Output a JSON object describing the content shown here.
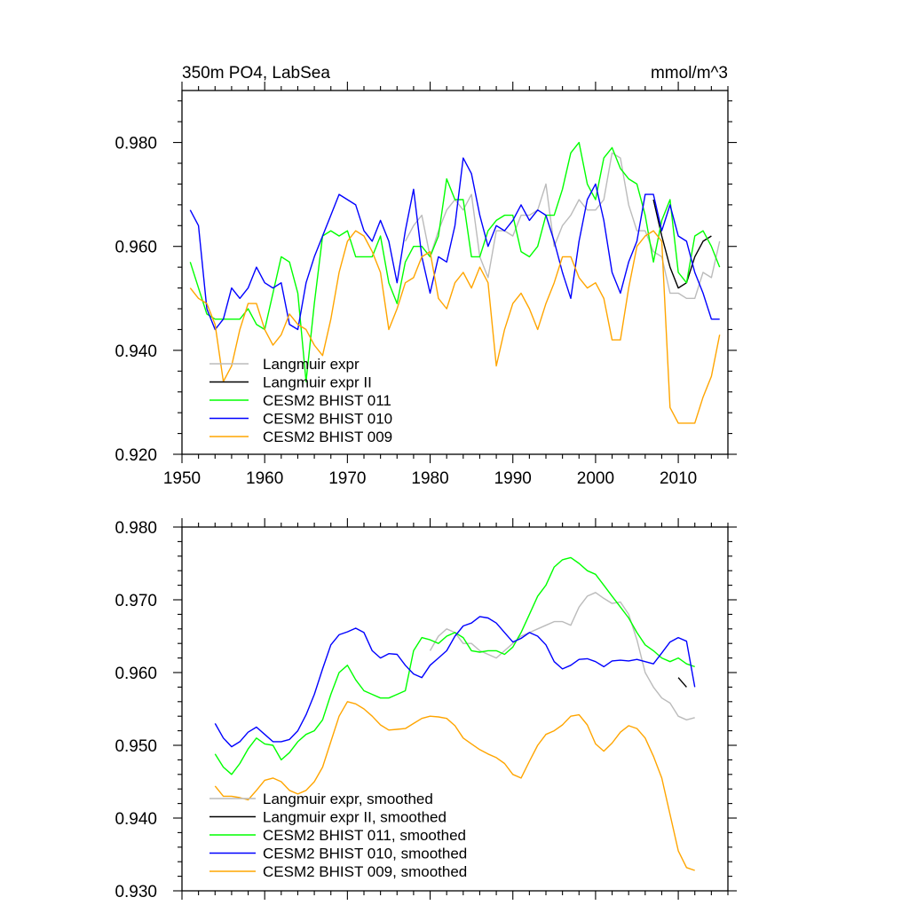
{
  "chart_data": [
    {
      "type": "line",
      "title": "350m PO4, LabSea",
      "units": "mmol/m^3",
      "ylim": [
        0.92,
        0.99
      ],
      "xlim": [
        1950,
        2016
      ],
      "yticks": [
        "0.920",
        "0.940",
        "0.960",
        "0.980"
      ],
      "xticks": [
        "1950",
        "1960",
        "1970",
        "1980",
        "1990",
        "2000",
        "2010"
      ],
      "legend_position": "bottom-left",
      "series": [
        {
          "name": "Langmuir expr",
          "color": "#bbbbbb",
          "x": [
            1977,
            1978,
            1979,
            1980,
            1981,
            1982,
            1983,
            1984,
            1985,
            1986,
            1987,
            1988,
            1989,
            1990,
            1991,
            1992,
            1993,
            1994,
            1995,
            1996,
            1997,
            1998,
            1999,
            2000,
            2001,
            2002,
            2003,
            2004,
            2005,
            2006,
            2007,
            2008,
            2009,
            2010,
            2011,
            2012,
            2013,
            2014,
            2015
          ],
          "y": [
            0.961,
            0.964,
            0.966,
            0.958,
            0.963,
            0.967,
            0.969,
            0.967,
            0.97,
            0.958,
            0.954,
            0.963,
            0.963,
            0.962,
            0.966,
            0.966,
            0.967,
            0.972,
            0.96,
            0.964,
            0.966,
            0.969,
            0.967,
            0.967,
            0.969,
            0.978,
            0.977,
            0.968,
            0.963,
            0.963,
            0.959,
            0.958,
            0.951,
            0.951,
            0.95,
            0.95,
            0.955,
            0.954,
            0.961
          ]
        },
        {
          "name": "Langmuir expr II",
          "color": "#000000",
          "x": [
            2007,
            2008,
            2009,
            2010,
            2011,
            2012,
            2013,
            2014
          ],
          "y": [
            0.969,
            0.962,
            0.956,
            0.952,
            0.953,
            0.958,
            0.961,
            0.962
          ]
        },
        {
          "name": "CESM2 BHIST 011",
          "color": "#00ff00",
          "x": [
            1951,
            1952,
            1953,
            1954,
            1955,
            1956,
            1957,
            1958,
            1959,
            1960,
            1961,
            1962,
            1963,
            1964,
            1965,
            1966,
            1967,
            1968,
            1969,
            1970,
            1971,
            1972,
            1973,
            1974,
            1975,
            1976,
            1977,
            1978,
            1979,
            1980,
            1981,
            1982,
            1983,
            1984,
            1985,
            1986,
            1987,
            1988,
            1989,
            1990,
            1991,
            1992,
            1993,
            1994,
            1995,
            1996,
            1997,
            1998,
            1999,
            2000,
            2001,
            2002,
            2003,
            2004,
            2005,
            2006,
            2007,
            2008,
            2009,
            2010,
            2011,
            2012,
            2013,
            2014,
            2015
          ],
          "y": [
            0.957,
            0.952,
            0.947,
            0.946,
            0.946,
            0.946,
            0.946,
            0.948,
            0.945,
            0.944,
            0.951,
            0.958,
            0.957,
            0.951,
            0.934,
            0.949,
            0.962,
            0.963,
            0.962,
            0.963,
            0.958,
            0.958,
            0.958,
            0.962,
            0.953,
            0.949,
            0.957,
            0.96,
            0.96,
            0.958,
            0.962,
            0.973,
            0.969,
            0.969,
            0.958,
            0.958,
            0.963,
            0.965,
            0.966,
            0.966,
            0.959,
            0.958,
            0.96,
            0.966,
            0.966,
            0.971,
            0.978,
            0.98,
            0.972,
            0.969,
            0.977,
            0.979,
            0.975,
            0.973,
            0.972,
            0.966,
            0.957,
            0.965,
            0.969,
            0.955,
            0.953,
            0.962,
            0.963,
            0.96,
            0.956
          ]
        },
        {
          "name": "CESM2 BHIST 010",
          "color": "#0000ff",
          "x": [
            1951,
            1952,
            1953,
            1954,
            1955,
            1956,
            1957,
            1958,
            1959,
            1960,
            1961,
            1962,
            1963,
            1964,
            1965,
            1966,
            1967,
            1968,
            1969,
            1970,
            1971,
            1972,
            1973,
            1974,
            1975,
            1976,
            1977,
            1978,
            1979,
            1980,
            1981,
            1982,
            1983,
            1984,
            1985,
            1986,
            1987,
            1988,
            1989,
            1990,
            1991,
            1992,
            1993,
            1994,
            1995,
            1996,
            1997,
            1998,
            1999,
            2000,
            2001,
            2002,
            2003,
            2004,
            2005,
            2006,
            2007,
            2008,
            2009,
            2010,
            2011,
            2012,
            2013,
            2014,
            2015
          ],
          "y": [
            0.967,
            0.964,
            0.948,
            0.944,
            0.946,
            0.952,
            0.95,
            0.952,
            0.956,
            0.953,
            0.952,
            0.953,
            0.945,
            0.944,
            0.953,
            0.958,
            0.962,
            0.966,
            0.97,
            0.969,
            0.968,
            0.963,
            0.961,
            0.965,
            0.961,
            0.953,
            0.963,
            0.971,
            0.958,
            0.951,
            0.958,
            0.957,
            0.964,
            0.977,
            0.974,
            0.966,
            0.96,
            0.964,
            0.963,
            0.965,
            0.968,
            0.965,
            0.967,
            0.966,
            0.961,
            0.955,
            0.95,
            0.961,
            0.969,
            0.972,
            0.965,
            0.955,
            0.951,
            0.957,
            0.961,
            0.97,
            0.97,
            0.963,
            0.968,
            0.962,
            0.961,
            0.955,
            0.951,
            0.946,
            0.946
          ]
        },
        {
          "name": "CESM2 BHIST 009",
          "color": "#ffa500",
          "x": [
            1951,
            1952,
            1953,
            1954,
            1955,
            1956,
            1957,
            1958,
            1959,
            1960,
            1961,
            1962,
            1963,
            1964,
            1965,
            1966,
            1967,
            1968,
            1969,
            1970,
            1971,
            1972,
            1973,
            1974,
            1975,
            1976,
            1977,
            1978,
            1979,
            1980,
            1981,
            1982,
            1983,
            1984,
            1985,
            1986,
            1987,
            1988,
            1989,
            1990,
            1991,
            1992,
            1993,
            1994,
            1995,
            1996,
            1997,
            1998,
            1999,
            2000,
            2001,
            2002,
            2003,
            2004,
            2005,
            2006,
            2007,
            2008,
            2009,
            2010,
            2011,
            2012,
            2013,
            2014,
            2015
          ],
          "y": [
            0.952,
            0.95,
            0.949,
            0.945,
            0.934,
            0.937,
            0.944,
            0.949,
            0.949,
            0.944,
            0.941,
            0.943,
            0.947,
            0.945,
            0.944,
            0.941,
            0.939,
            0.946,
            0.955,
            0.961,
            0.963,
            0.962,
            0.959,
            0.955,
            0.944,
            0.948,
            0.953,
            0.954,
            0.958,
            0.959,
            0.95,
            0.948,
            0.953,
            0.955,
            0.952,
            0.956,
            0.953,
            0.937,
            0.944,
            0.949,
            0.951,
            0.948,
            0.944,
            0.949,
            0.953,
            0.958,
            0.958,
            0.954,
            0.952,
            0.953,
            0.95,
            0.942,
            0.942,
            0.952,
            0.96,
            0.962,
            0.963,
            0.961,
            0.929,
            0.926,
            0.926,
            0.926,
            0.931,
            0.935,
            0.943
          ]
        }
      ]
    },
    {
      "type": "line",
      "title": "",
      "ylim": [
        0.93,
        0.98
      ],
      "xlim": [
        1950,
        2016
      ],
      "yticks": [
        "0.930",
        "0.940",
        "0.950",
        "0.960",
        "0.970",
        "0.980"
      ],
      "legend_position": "bottom-left",
      "series": [
        {
          "name": "Langmuir expr, smoothed",
          "color": "#bbbbbb",
          "x": [
            1980,
            1981,
            1982,
            1983,
            1984,
            1985,
            1986,
            1987,
            1988,
            1989,
            1990,
            1991,
            1992,
            1993,
            1994,
            1995,
            1996,
            1997,
            1998,
            1999,
            2000,
            2001,
            2002,
            2003,
            2004,
            2005,
            2006,
            2007,
            2008,
            2009,
            2010,
            2011,
            2012
          ],
          "y": [
            0.963,
            0.965,
            0.966,
            0.9655,
            0.964,
            0.964,
            0.963,
            0.9625,
            0.962,
            0.963,
            0.964,
            0.965,
            0.9655,
            0.966,
            0.9665,
            0.967,
            0.967,
            0.9665,
            0.969,
            0.9705,
            0.971,
            0.9702,
            0.9695,
            0.9697,
            0.968,
            0.9645,
            0.96,
            0.958,
            0.9565,
            0.9558,
            0.954,
            0.9535,
            0.9538
          ]
        },
        {
          "name": "Langmuir expr II, smoothed",
          "color": "#000000",
          "x": [
            2010,
            2011
          ],
          "y": [
            0.9593,
            0.958
          ]
        },
        {
          "name": "CESM2 BHIST 011, smoothed",
          "color": "#00ff00",
          "x": [
            1954,
            1955,
            1956,
            1957,
            1958,
            1959,
            1960,
            1961,
            1962,
            1963,
            1964,
            1965,
            1966,
            1967,
            1968,
            1969,
            1970,
            1971,
            1972,
            1973,
            1974,
            1975,
            1976,
            1977,
            1978,
            1979,
            1980,
            1981,
            1982,
            1983,
            1984,
            1985,
            1986,
            1987,
            1988,
            1989,
            1990,
            1991,
            1992,
            1993,
            1994,
            1995,
            1996,
            1997,
            1998,
            1999,
            2000,
            2001,
            2002,
            2003,
            2004,
            2005,
            2006,
            2007,
            2008,
            2009,
            2010,
            2011,
            2012
          ],
          "y": [
            0.9488,
            0.947,
            0.946,
            0.9475,
            0.9495,
            0.951,
            0.9502,
            0.95,
            0.948,
            0.949,
            0.9505,
            0.9515,
            0.952,
            0.9535,
            0.957,
            0.96,
            0.961,
            0.959,
            0.9575,
            0.957,
            0.9565,
            0.9565,
            0.957,
            0.9575,
            0.963,
            0.9648,
            0.9645,
            0.964,
            0.965,
            0.9655,
            0.9648,
            0.963,
            0.9628,
            0.963,
            0.963,
            0.9625,
            0.9635,
            0.9655,
            0.968,
            0.9705,
            0.972,
            0.9745,
            0.9755,
            0.9758,
            0.975,
            0.974,
            0.9735,
            0.972,
            0.9705,
            0.969,
            0.9675,
            0.9655,
            0.9638,
            0.963,
            0.962,
            0.9615,
            0.962,
            0.9612,
            0.9608
          ]
        },
        {
          "name": "CESM2 BHIST 010, smoothed",
          "color": "#0000ff",
          "x": [
            1954,
            1955,
            1956,
            1957,
            1958,
            1959,
            1960,
            1961,
            1962,
            1963,
            1964,
            1965,
            1966,
            1967,
            1968,
            1969,
            1970,
            1971,
            1972,
            1973,
            1974,
            1975,
            1976,
            1977,
            1978,
            1979,
            1980,
            1981,
            1982,
            1983,
            1984,
            1985,
            1986,
            1987,
            1988,
            1989,
            1990,
            1991,
            1992,
            1993,
            1994,
            1995,
            1996,
            1997,
            1998,
            1999,
            2000,
            2001,
            2002,
            2003,
            2004,
            2005,
            2006,
            2007,
            2008,
            2009,
            2010,
            2011,
            2012
          ],
          "y": [
            0.953,
            0.951,
            0.9498,
            0.9505,
            0.9518,
            0.9525,
            0.9515,
            0.9505,
            0.9505,
            0.9508,
            0.952,
            0.9542,
            0.957,
            0.9605,
            0.9638,
            0.9652,
            0.9656,
            0.9661,
            0.9655,
            0.963,
            0.962,
            0.9626,
            0.9625,
            0.961,
            0.9598,
            0.9593,
            0.961,
            0.962,
            0.963,
            0.965,
            0.9664,
            0.9668,
            0.9677,
            0.9675,
            0.9668,
            0.9655,
            0.9642,
            0.9647,
            0.9655,
            0.965,
            0.9638,
            0.9615,
            0.9605,
            0.961,
            0.9618,
            0.9619,
            0.9615,
            0.9608,
            0.9616,
            0.9617,
            0.9616,
            0.9618,
            0.9615,
            0.9612,
            0.9627,
            0.9642,
            0.9648,
            0.9643,
            0.958
          ]
        },
        {
          "name": "CESM2 BHIST 009, smoothed",
          "color": "#ffa500",
          "x": [
            1954,
            1955,
            1956,
            1957,
            1958,
            1959,
            1960,
            1961,
            1962,
            1963,
            1964,
            1965,
            1966,
            1967,
            1968,
            1969,
            1970,
            1971,
            1972,
            1973,
            1974,
            1975,
            1976,
            1977,
            1978,
            1979,
            1980,
            1981,
            1982,
            1983,
            1984,
            1985,
            1986,
            1987,
            1988,
            1989,
            1990,
            1991,
            1992,
            1993,
            1994,
            1995,
            1996,
            1997,
            1998,
            1999,
            2000,
            2001,
            2002,
            2003,
            2004,
            2005,
            2006,
            2007,
            2008,
            2009,
            2010,
            2011,
            2012
          ],
          "y": [
            0.9444,
            0.943,
            0.943,
            0.9428,
            0.9425,
            0.9438,
            0.9452,
            0.9455,
            0.945,
            0.9438,
            0.9433,
            0.9438,
            0.945,
            0.947,
            0.9505,
            0.954,
            0.956,
            0.9557,
            0.955,
            0.954,
            0.9528,
            0.9521,
            0.9522,
            0.9523,
            0.953,
            0.9537,
            0.954,
            0.9539,
            0.9537,
            0.9527,
            0.951,
            0.9502,
            0.9494,
            0.9488,
            0.9483,
            0.9475,
            0.946,
            0.9455,
            0.9478,
            0.95,
            0.9515,
            0.952,
            0.9528,
            0.954,
            0.9542,
            0.9528,
            0.9502,
            0.9492,
            0.9503,
            0.9518,
            0.9527,
            0.9523,
            0.951,
            0.9485,
            0.9455,
            0.9405,
            0.9355,
            0.9332,
            0.9328
          ]
        }
      ]
    }
  ]
}
